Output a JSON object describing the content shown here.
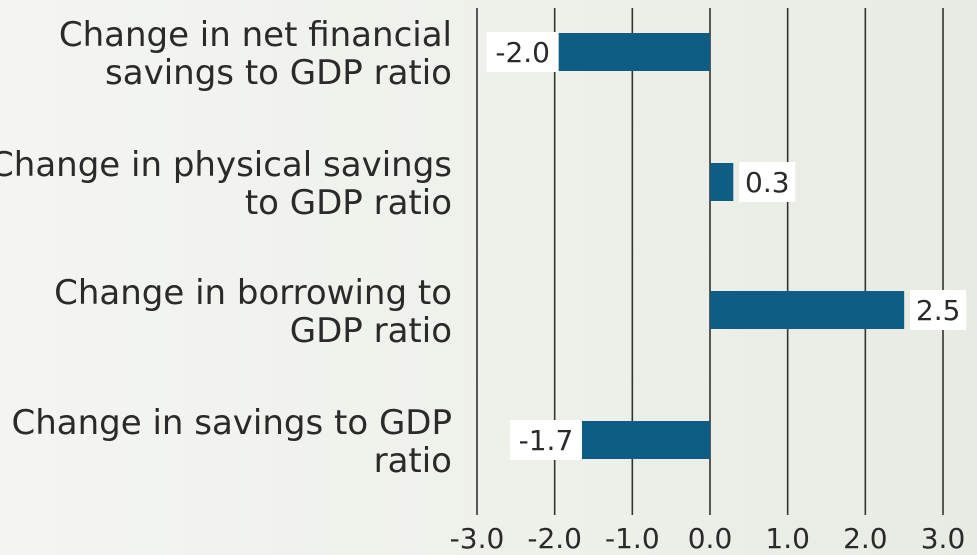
{
  "chart_data": {
    "type": "bar",
    "orientation": "horizontal",
    "categories": [
      [
        "Change in net financial",
        "savings to GDP ratio"
      ],
      [
        "Change in physical savings",
        "to GDP ratio"
      ],
      [
        "Change in borrowing to",
        "GDP ratio"
      ],
      [
        "Change in savings to GDP",
        "ratio"
      ]
    ],
    "values": [
      -2.0,
      0.3,
      2.5,
      -1.7
    ],
    "value_labels": [
      "-2.0",
      "0.3",
      "2.5",
      "-1.7"
    ],
    "xlim": [
      -3.0,
      3.0
    ],
    "x_ticks": [
      -3.0,
      -2.0,
      -1.0,
      0.0,
      1.0,
      2.0,
      3.0
    ],
    "x_tick_labels": [
      "-3.0",
      "-2.0",
      "-1.0",
      "0.0",
      "1.0",
      "2.0",
      "3.0"
    ],
    "grid": true,
    "bar_color": "#0f5d85",
    "title": "",
    "xlabel": "",
    "ylabel": ""
  }
}
